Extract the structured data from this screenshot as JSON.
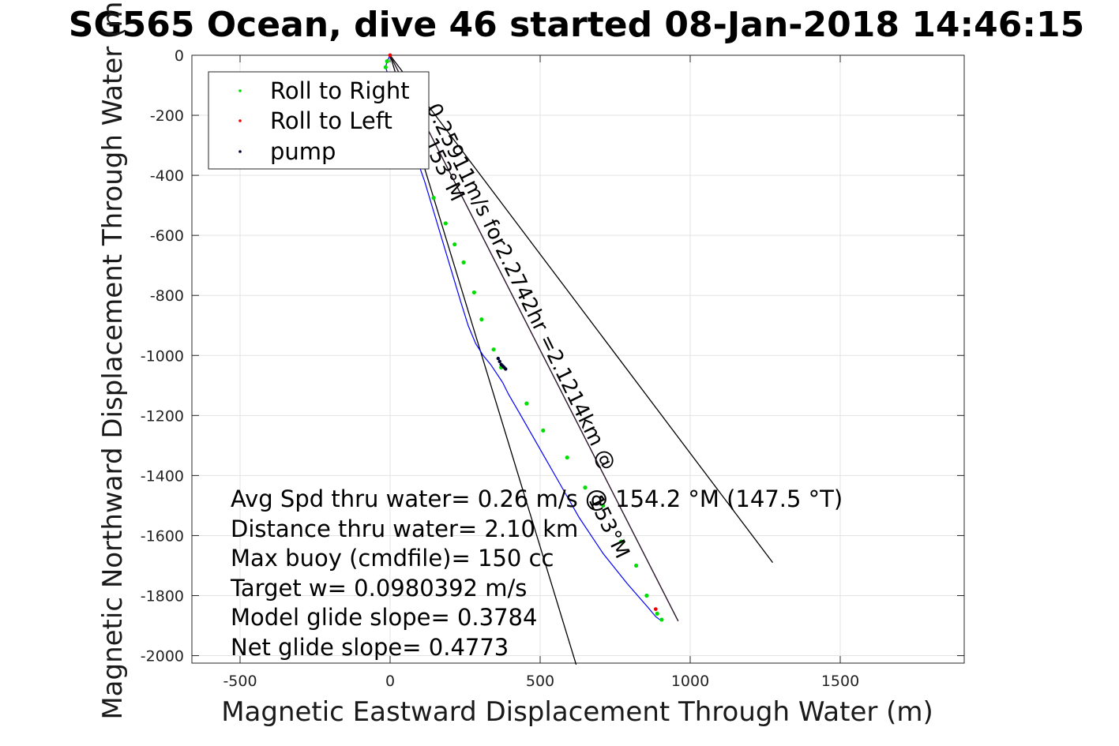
{
  "chart_data": {
    "type": "line",
    "title": "SG565 Ocean, dive 46 started 08-Jan-2018 14:46:15",
    "xlabel": "Magnetic Eastward Displacement Through Water (m)",
    "ylabel": "Magnetic Northward Displacement Through Water (m)",
    "xlim": [
      -650,
      1900
    ],
    "ylim": [
      -2030,
      0
    ],
    "xticks": [
      -500,
      0,
      500,
      1000,
      1500
    ],
    "yticks": [
      0,
      -200,
      -400,
      -600,
      -800,
      -1000,
      -1200,
      -1400,
      -1600,
      -1800,
      -2000
    ],
    "grid": true,
    "legend_position": "top-left",
    "legend": [
      {
        "label": "Roll to Right",
        "color": "#00dd00"
      },
      {
        "label": "Roll to Left",
        "color": "#ee0000"
      },
      {
        "label": "pump",
        "color": "#000033"
      }
    ],
    "track": {
      "color": "#0000ff",
      "x": [
        0,
        -10,
        -15,
        5,
        40,
        80,
        115,
        145,
        175,
        205,
        235,
        260,
        285,
        310,
        335,
        355,
        375,
        395,
        430,
        470,
        510,
        550,
        590,
        630,
        670,
        710,
        750,
        790,
        825,
        860,
        885,
        905
      ],
      "y": [
        0,
        -20,
        -40,
        -100,
        -200,
        -320,
        -420,
        -520,
        -620,
        -720,
        -820,
        -900,
        -960,
        -1000,
        -1030,
        -1060,
        -1090,
        -1130,
        -1190,
        -1260,
        -1330,
        -1400,
        -1470,
        -1540,
        -1600,
        -1660,
        -1710,
        -1760,
        -1800,
        -1840,
        -1870,
        -1885
      ]
    },
    "roll_right_x": [
      -10,
      -15,
      145,
      185,
      215,
      245,
      280,
      305,
      345,
      370,
      455,
      510,
      590,
      650,
      710,
      770,
      820,
      855,
      890,
      905
    ],
    "roll_right_y": [
      -20,
      -40,
      -475,
      -560,
      -630,
      -690,
      -790,
      -880,
      -980,
      -1040,
      -1160,
      -1250,
      -1340,
      -1440,
      -1500,
      -1620,
      -1700,
      -1800,
      -1860,
      -1880
    ],
    "roll_left_x": [
      0,
      885
    ],
    "roll_left_y": [
      0,
      -1845
    ],
    "pump_x": [
      360,
      365,
      370,
      375,
      380,
      385
    ],
    "pump_y": [
      -1010,
      -1020,
      -1030,
      -1035,
      -1040,
      -1045
    ],
    "reference_lines": [
      {
        "name": "heading",
        "color": "#cc00cc",
        "x": [
          0,
          960
        ],
        "y": [
          0,
          -1885
        ]
      },
      {
        "name": "cone-wide",
        "color": "#000000",
        "x": [
          0,
          1275
        ],
        "y": [
          0,
          -1690
        ]
      },
      {
        "name": "cone-narrow",
        "color": "#000000",
        "x": [
          0,
          620
        ],
        "y": [
          0,
          -2030
        ]
      },
      {
        "name": "heading-dark",
        "color": "#222222",
        "x": [
          0,
          960
        ],
        "y": [
          0,
          -1885
        ]
      }
    ],
    "rotated_labels": [
      {
        "text": "0.25911m/s for2.2742hr =2.1214km @",
        "x": 120,
        "y": -175,
        "angle": 64
      },
      {
        "text": "153°M",
        "x": 110,
        "y": -290,
        "angle": 64
      },
      {
        "text": "153°M",
        "x": 660,
        "y": -1480,
        "angle": 64
      }
    ],
    "annotations": [
      "Avg Spd thru water=  0.26 m/s @ 154.2 °M (147.5 °T)",
      "Distance thru water=  2.10 km",
      "Max buoy (cmdfile)= 150 cc",
      "Target w= 0.0980392 m/s",
      "Model glide slope= 0.3784",
      "Net glide slope= 0.4773"
    ]
  }
}
